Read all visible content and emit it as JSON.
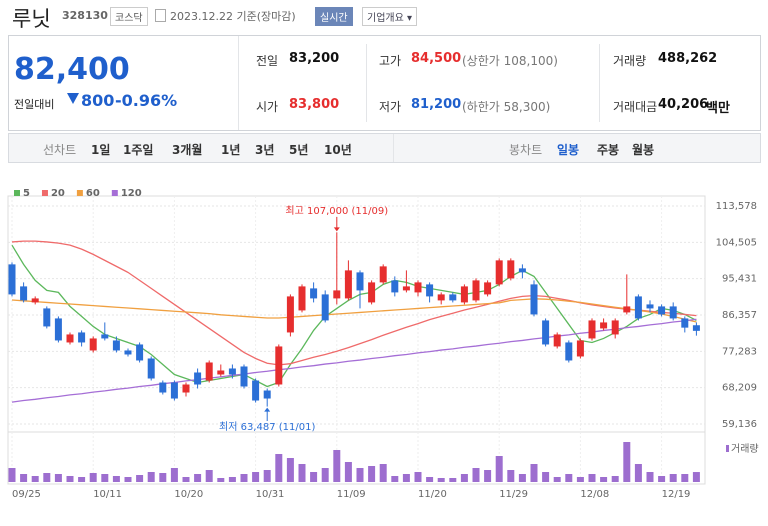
{
  "header": {
    "name": "루닛",
    "code": "328130",
    "market": "코스닥",
    "date": "2023.12.22 기준(장마감)",
    "realtime": "실시간",
    "company_info": "기업개요"
  },
  "summary": {
    "price": "82,400",
    "change_label": "전일대비",
    "change": "800",
    "change_rate": "-0.96%",
    "rows": [
      [
        {
          "label": "전일",
          "value": "83,200"
        },
        {
          "label": "고가",
          "value": "84,500",
          "color": "#e62e2e",
          "note": "(상한가 108,100)"
        },
        {
          "label": "거래량",
          "value": "488,262"
        }
      ],
      [
        {
          "label": "시가",
          "value": "83,800",
          "color": "#e62e2e"
        },
        {
          "label": "저가",
          "value": "81,200",
          "color": "#1f5fcc",
          "note": "(하한가 58,300)"
        },
        {
          "label": "거래대금",
          "value": "40,206",
          "unit": "백만"
        }
      ]
    ]
  },
  "tabs": {
    "line_label": "선차트",
    "line_periods": [
      "1일",
      "1주일",
      "3개월",
      "1년",
      "3년",
      "5년",
      "10년"
    ],
    "candle_label": "봉차트",
    "candle_periods": [
      "일봉",
      "주봉",
      "월봉"
    ],
    "selected_candle_period": 0
  },
  "chart_data": {
    "type": "candlestick",
    "categories": [
      "09/25",
      null,
      null,
      null,
      null,
      null,
      null,
      "10/11",
      null,
      null,
      null,
      null,
      null,
      null,
      "10/20",
      null,
      null,
      null,
      null,
      null,
      null,
      "10/31",
      null,
      null,
      null,
      null,
      null,
      null,
      "11/09",
      null,
      null,
      null,
      null,
      null,
      null,
      "11/20",
      null,
      null,
      null,
      null,
      null,
      null,
      "11/29",
      null,
      null,
      null,
      null,
      null,
      null,
      "12/08",
      null,
      null,
      null,
      null,
      null,
      null,
      "12/19",
      null,
      null,
      null
    ],
    "open": [
      99000,
      93500,
      89500,
      88000,
      85500,
      79500,
      82000,
      77500,
      81500,
      80000,
      77500,
      79000,
      75500,
      69500,
      69500,
      67000,
      72000,
      70000,
      71500,
      73000,
      73500,
      70000,
      67500,
      69000,
      82000,
      87500,
      93000,
      91500,
      90500,
      90500,
      97000,
      89500,
      94500,
      95000,
      92500,
      92000,
      94000,
      90000,
      91500,
      89500,
      90000,
      91500,
      94000,
      95500,
      98000,
      94000,
      85000,
      78500,
      79500,
      76000,
      80500,
      83000,
      81500,
      87000,
      91000,
      89000,
      88500,
      88500,
      85500,
      83800
    ],
    "high": [
      99500,
      94500,
      91000,
      88500,
      86000,
      82000,
      82500,
      81000,
      84500,
      81000,
      78000,
      79500,
      76000,
      70000,
      70000,
      69500,
      73000,
      75000,
      74000,
      74000,
      74000,
      70500,
      68000,
      79000,
      91500,
      94000,
      94500,
      92500,
      107000,
      100000,
      97500,
      95000,
      99000,
      96000,
      97500,
      95000,
      94500,
      92000,
      92000,
      94000,
      95500,
      95000,
      100500,
      100500,
      99000,
      95000,
      85500,
      82000,
      80000,
      80500,
      85500,
      85500,
      85500,
      96500,
      91500,
      90000,
      89000,
      89500,
      86000,
      84500
    ],
    "low": [
      91000,
      89500,
      89000,
      83000,
      79500,
      79000,
      78500,
      77000,
      80000,
      77000,
      76000,
      74500,
      70000,
      66500,
      65000,
      66000,
      68000,
      69500,
      71000,
      70500,
      68000,
      64500,
      63487,
      68500,
      81000,
      87000,
      89500,
      84500,
      89000,
      90000,
      88000,
      89000,
      94000,
      91000,
      92000,
      91000,
      89500,
      89000,
      89500,
      89000,
      89500,
      91000,
      93500,
      95000,
      95500,
      86000,
      78500,
      78000,
      74500,
      75500,
      80000,
      82500,
      80500,
      86500,
      85000,
      87000,
      86000,
      85000,
      82000,
      81200
    ],
    "close": [
      91500,
      90000,
      90500,
      83500,
      80000,
      81500,
      79500,
      80500,
      80500,
      77500,
      76500,
      75000,
      70500,
      67000,
      65500,
      69000,
      69000,
      74500,
      72500,
      71500,
      68500,
      65000,
      65500,
      78500,
      91000,
      93500,
      90500,
      85000,
      92500,
      97500,
      92500,
      94500,
      98500,
      92000,
      93500,
      94500,
      91000,
      91500,
      90000,
      93500,
      95000,
      94500,
      100000,
      100000,
      97000,
      86500,
      79000,
      81500,
      75000,
      80000,
      85000,
      84500,
      85000,
      88500,
      85500,
      88000,
      86500,
      85500,
      83200,
      82400
    ],
    "up_color": "#e62e2e",
    "down_color": "#2b6fd6",
    "ylim": [
      59136,
      113578
    ],
    "yticks": [
      {
        "value": 113578,
        "label": "113,578"
      },
      {
        "value": 104505,
        "label": "104,505"
      },
      {
        "value": 95431,
        "label": "95,431"
      },
      {
        "value": 86357,
        "label": "86,357"
      },
      {
        "value": 77283,
        "label": "77,283"
      },
      {
        "value": 68209,
        "label": "68,209"
      },
      {
        "value": 59136,
        "label": "59,136"
      }
    ],
    "grid": true,
    "moving_averages": [
      {
        "name": "5",
        "color": "#5cb85c",
        "values": [
          103800,
          99000,
          95000,
          92500,
          92000,
          88500,
          86000,
          83500,
          81500,
          80500,
          79500,
          78500,
          76500,
          74000,
          71500,
          70500,
          69500,
          70000,
          70500,
          71000,
          71500,
          70000,
          68500,
          69500,
          74000,
          78000,
          82500,
          86000,
          88000,
          90000,
          91500,
          92000,
          94000,
          95000,
          94500,
          93500,
          93000,
          92500,
          92000,
          91500,
          92000,
          92500,
          94000,
          96000,
          97500,
          96000,
          92000,
          88000,
          84000,
          80000,
          79500,
          80500,
          82000,
          83500,
          85500,
          86500,
          88000,
          87500,
          86500,
          85000
        ]
      },
      {
        "name": "20",
        "color": "#ef6a6a",
        "values": [
          104600,
          104800,
          104800,
          104600,
          104300,
          103800,
          102800,
          101500,
          100000,
          98500,
          97000,
          95000,
          93000,
          91000,
          89000,
          87000,
          85000,
          83000,
          81000,
          79000,
          77000,
          75500,
          74300,
          73900,
          74200,
          75000,
          75800,
          76500,
          77300,
          78200,
          79200,
          80200,
          81300,
          82300,
          83300,
          84200,
          85200,
          86000,
          86800,
          87600,
          88300,
          89000,
          89800,
          90500,
          91000,
          91200,
          91000,
          90500,
          90000,
          89400,
          88900,
          88500,
          88100,
          87800,
          87600,
          87300,
          87000,
          86800,
          86500,
          86200
        ]
      },
      {
        "name": "60",
        "color": "#f0a040",
        "values": [
          90100,
          89900,
          89700,
          89500,
          89300,
          89100,
          88900,
          88700,
          88500,
          88300,
          88100,
          87900,
          87700,
          87500,
          87300,
          87100,
          86900,
          86700,
          86400,
          86200,
          86000,
          85800,
          85600,
          85600,
          85800,
          86000,
          86200,
          86400,
          86600,
          86800,
          87000,
          87200,
          87400,
          87600,
          87800,
          88000,
          88200,
          88400,
          88600,
          88800,
          89000,
          89200,
          89400,
          90000,
          90200,
          90400,
          90300,
          90100,
          89800,
          89500,
          89100,
          88700,
          88300,
          87900,
          87500,
          87100,
          86600,
          86000,
          85300,
          84600
        ]
      },
      {
        "name": "120",
        "color": "#a56ed6",
        "values": [
          64600,
          65000,
          65300,
          65700,
          66000,
          66400,
          66700,
          67100,
          67400,
          67800,
          68100,
          68500,
          68800,
          69200,
          69500,
          69900,
          70200,
          70600,
          70900,
          71300,
          71600,
          72000,
          72300,
          72700,
          73000,
          73400,
          73700,
          74100,
          74400,
          74800,
          75100,
          75500,
          75800,
          76200,
          76500,
          76900,
          77200,
          77600,
          77900,
          78300,
          78600,
          79000,
          79300,
          79700,
          80000,
          80400,
          80700,
          81100,
          81400,
          81800,
          82100,
          82500,
          82800,
          83200,
          83500,
          83900,
          84200,
          84600,
          84900,
          85300
        ]
      }
    ],
    "volume": {
      "name": "거래량",
      "color": "#9d6ecf",
      "values": [
        686000,
        392000,
        294000,
        441000,
        392000,
        294000,
        245000,
        441000,
        392000,
        294000,
        245000,
        343000,
        490000,
        441000,
        686000,
        245000,
        392000,
        588000,
        196000,
        245000,
        392000,
        490000,
        588000,
        1372000,
        1176000,
        882000,
        490000,
        686000,
        1568000,
        980000,
        686000,
        784000,
        882000,
        294000,
        392000,
        490000,
        245000,
        196000,
        196000,
        392000,
        686000,
        588000,
        1274000,
        588000,
        392000,
        882000,
        490000,
        245000,
        392000,
        245000,
        392000,
        245000,
        294000,
        1960000,
        882000,
        490000,
        294000,
        392000,
        392000,
        488262
      ]
    },
    "annotations": [
      {
        "text": "최고 107,000 (11/09)",
        "color": "#e62e2e"
      },
      {
        "text": "최저 63,487 (11/01)",
        "color": "#2b6fd6"
      }
    ]
  }
}
